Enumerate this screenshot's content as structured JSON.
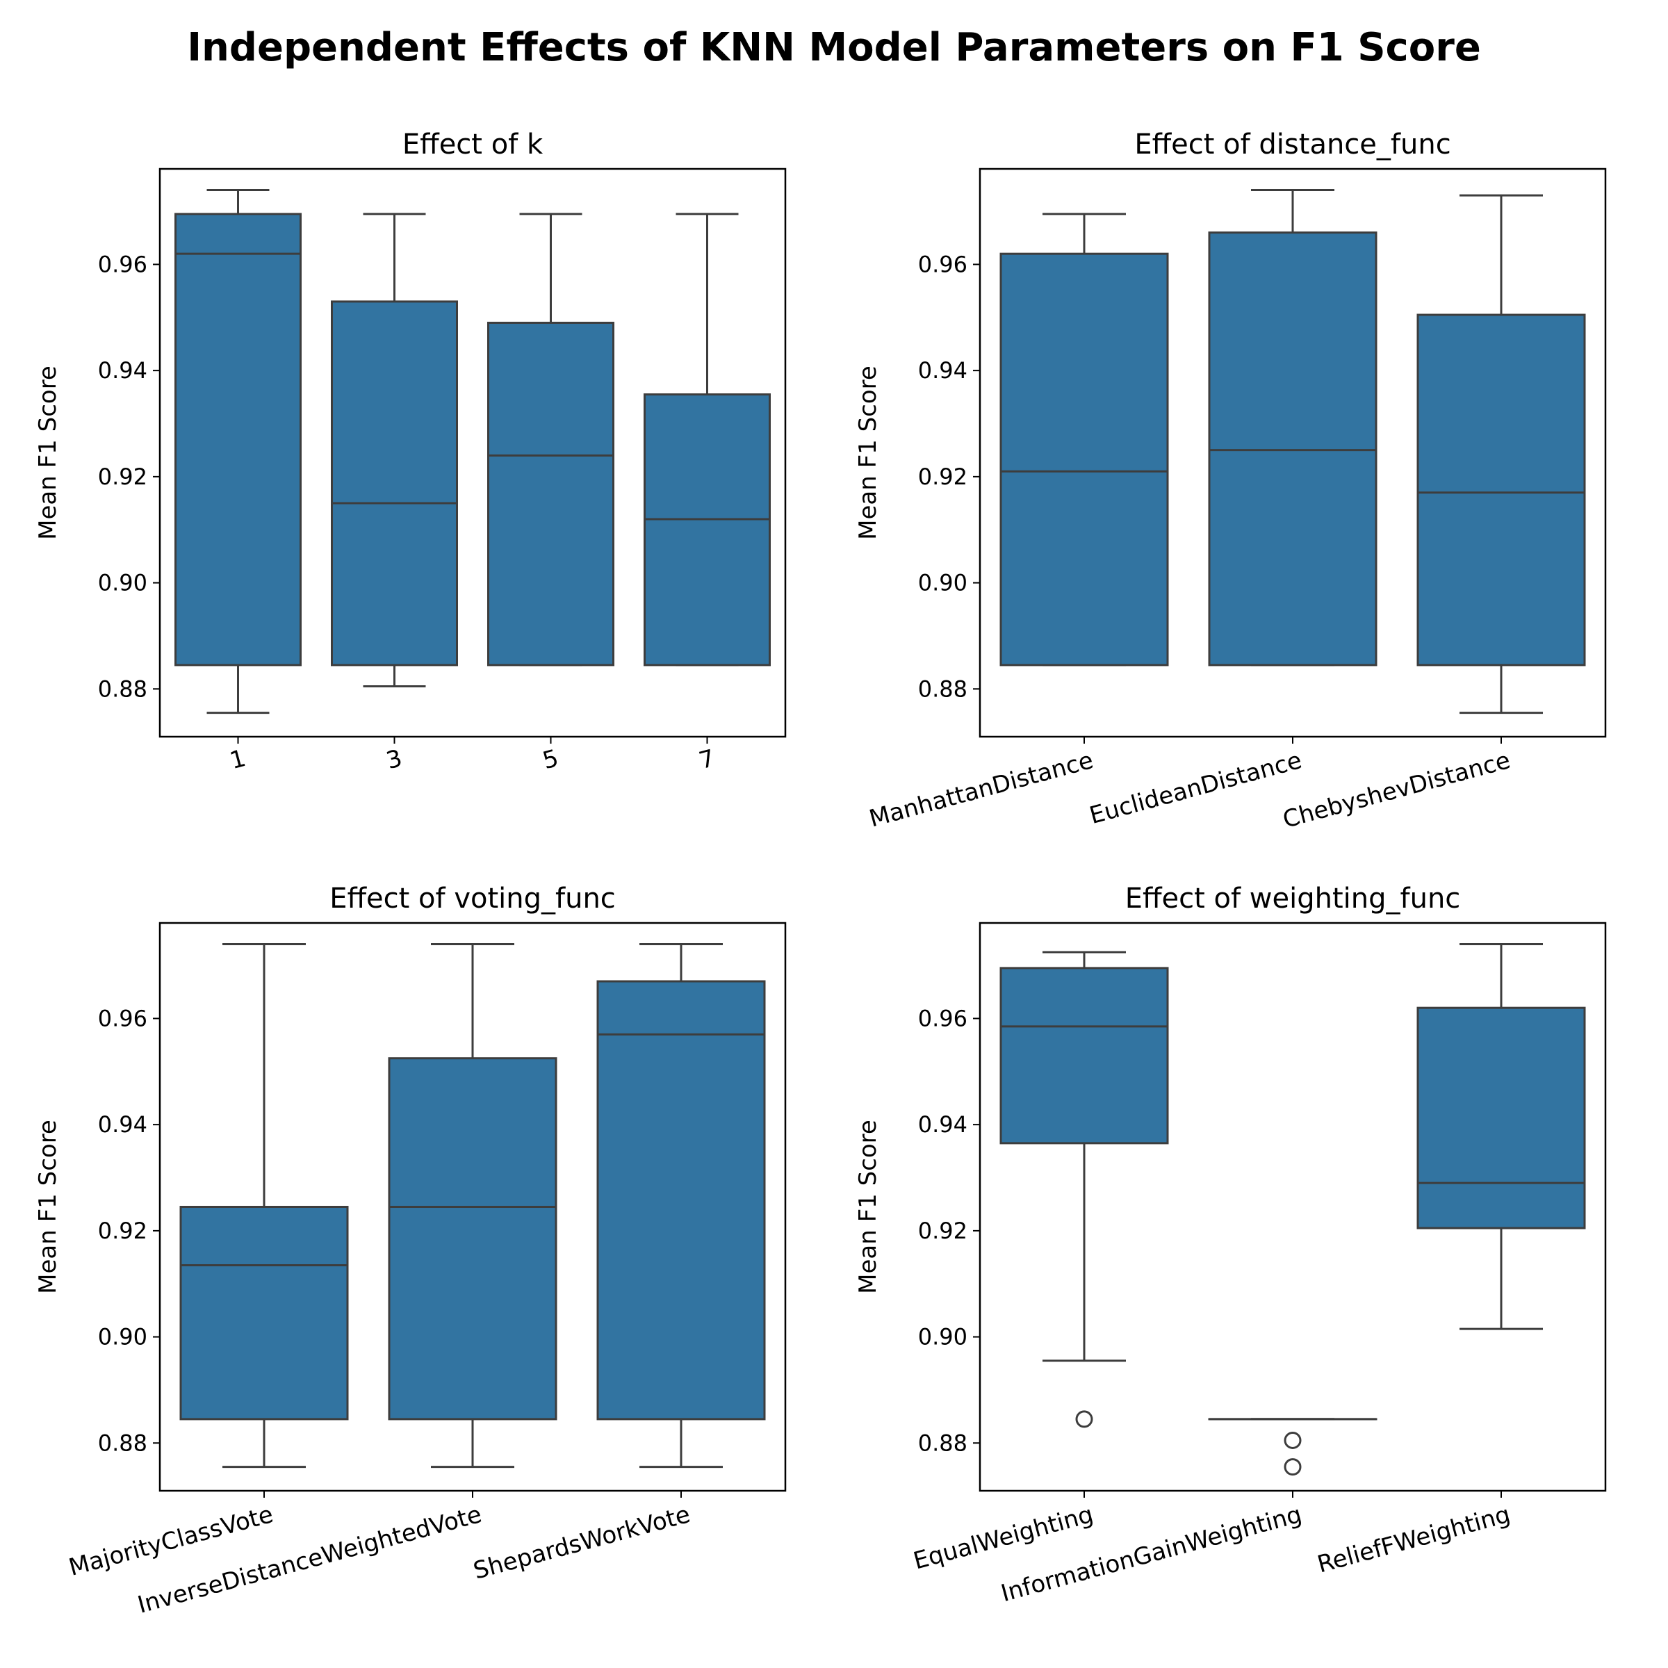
{
  "suptitle": "Independent Effects of KNN Model Parameters on F1 Score",
  "colors": {
    "box_fill": "#3274a1",
    "line": "#3d3d3d",
    "frame": "#000000"
  },
  "chart_data": [
    {
      "type": "box",
      "title": "Effect of k",
      "xlabel": "",
      "ylabel": "Mean F1 Score",
      "ylim": [
        0.871,
        0.978
      ],
      "yticks": [
        "0.88",
        "0.90",
        "0.92",
        "0.94",
        "0.96"
      ],
      "ytick_values": [
        0.88,
        0.9,
        0.92,
        0.94,
        0.96
      ],
      "xtick_rotation": 15,
      "categories": [
        "1",
        "3",
        "5",
        "7"
      ],
      "boxes": [
        {
          "whislo": 0.8755,
          "q1": 0.8845,
          "med": 0.962,
          "q3": 0.9695,
          "whishi": 0.974,
          "fliers": []
        },
        {
          "whislo": 0.8805,
          "q1": 0.8845,
          "med": 0.915,
          "q3": 0.953,
          "whishi": 0.9695,
          "fliers": []
        },
        {
          "whislo": 0.8845,
          "q1": 0.8845,
          "med": 0.924,
          "q3": 0.949,
          "whishi": 0.9695,
          "fliers": []
        },
        {
          "whislo": 0.8845,
          "q1": 0.8845,
          "med": 0.912,
          "q3": 0.9355,
          "whishi": 0.9695,
          "fliers": []
        }
      ]
    },
    {
      "type": "box",
      "title": "Effect of distance_func",
      "xlabel": "",
      "ylabel": "Mean F1 Score",
      "ylim": [
        0.871,
        0.978
      ],
      "yticks": [
        "0.88",
        "0.90",
        "0.92",
        "0.94",
        "0.96"
      ],
      "ytick_values": [
        0.88,
        0.9,
        0.92,
        0.94,
        0.96
      ],
      "xtick_rotation": 15,
      "categories": [
        "ManhattanDistance",
        "EuclideanDistance",
        "ChebyshevDistance"
      ],
      "boxes": [
        {
          "whislo": 0.8845,
          "q1": 0.8845,
          "med": 0.921,
          "q3": 0.962,
          "whishi": 0.9695,
          "fliers": []
        },
        {
          "whislo": 0.8845,
          "q1": 0.8845,
          "med": 0.925,
          "q3": 0.966,
          "whishi": 0.974,
          "fliers": []
        },
        {
          "whislo": 0.8755,
          "q1": 0.8845,
          "med": 0.917,
          "q3": 0.9505,
          "whishi": 0.973,
          "fliers": []
        }
      ]
    },
    {
      "type": "box",
      "title": "Effect of voting_func",
      "xlabel": "",
      "ylabel": "Mean F1 Score",
      "ylim": [
        0.871,
        0.978
      ],
      "yticks": [
        "0.88",
        "0.90",
        "0.92",
        "0.94",
        "0.96"
      ],
      "ytick_values": [
        0.88,
        0.9,
        0.92,
        0.94,
        0.96
      ],
      "xtick_rotation": 15,
      "categories": [
        "MajorityClassVote",
        "InverseDistanceWeightedVote",
        "ShepardsWorkVote"
      ],
      "boxes": [
        {
          "whislo": 0.8755,
          "q1": 0.8845,
          "med": 0.9135,
          "q3": 0.9245,
          "whishi": 0.974,
          "fliers": []
        },
        {
          "whislo": 0.8755,
          "q1": 0.8845,
          "med": 0.9245,
          "q3": 0.9525,
          "whishi": 0.974,
          "fliers": []
        },
        {
          "whislo": 0.8755,
          "q1": 0.8845,
          "med": 0.957,
          "q3": 0.967,
          "whishi": 0.974,
          "fliers": []
        }
      ]
    },
    {
      "type": "box",
      "title": "Effect of weighting_func",
      "xlabel": "",
      "ylabel": "Mean F1 Score",
      "ylim": [
        0.871,
        0.978
      ],
      "yticks": [
        "0.88",
        "0.90",
        "0.92",
        "0.94",
        "0.96"
      ],
      "ytick_values": [
        0.88,
        0.9,
        0.92,
        0.94,
        0.96
      ],
      "xtick_rotation": 15,
      "categories": [
        "EqualWeighting",
        "InformationGainWeighting",
        "ReliefFWeighting"
      ],
      "boxes": [
        {
          "whislo": 0.8955,
          "q1": 0.9365,
          "med": 0.9585,
          "q3": 0.9695,
          "whishi": 0.9725,
          "fliers": [
            0.8845
          ]
        },
        {
          "whislo": 0.8845,
          "q1": 0.8845,
          "med": 0.8845,
          "q3": 0.8845,
          "whishi": 0.8845,
          "fliers": [
            0.8805,
            0.8755
          ]
        },
        {
          "whislo": 0.9015,
          "q1": 0.9205,
          "med": 0.929,
          "q3": 0.962,
          "whishi": 0.974,
          "fliers": []
        }
      ]
    }
  ]
}
